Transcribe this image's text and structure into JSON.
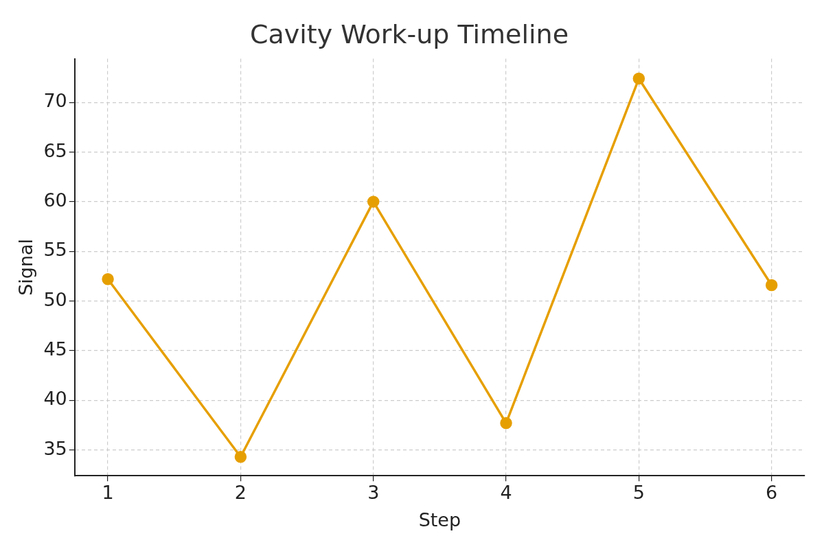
{
  "chart_data": {
    "type": "line",
    "title": "Cavity Work-up Timeline",
    "xlabel": "Step",
    "ylabel": "Signal",
    "x": [
      1,
      2,
      3,
      4,
      5,
      6
    ],
    "series": [
      {
        "color": "#e69f00",
        "values": [
          52.2,
          34.3,
          60.0,
          37.7,
          72.4,
          51.6
        ]
      }
    ],
    "xlim": [
      0.75,
      6.25
    ],
    "xticks": [
      1,
      2,
      3,
      4,
      5,
      6
    ],
    "ylim": [
      32.4,
      74.4
    ],
    "yticks": [
      35,
      40,
      45,
      50,
      55,
      60,
      65,
      70
    ],
    "grid": true,
    "legend": false,
    "marker": "circle",
    "line_style": "solid"
  }
}
